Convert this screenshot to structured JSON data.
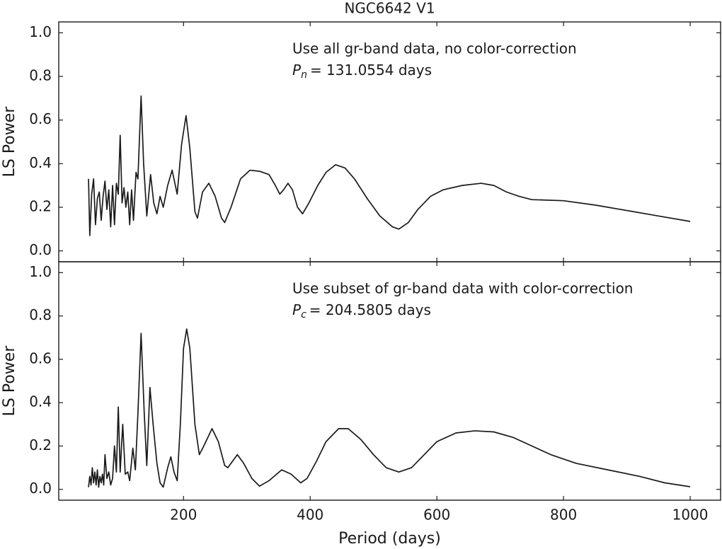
{
  "chart_data": [
    {
      "type": "line",
      "title": "NGC6642 V1",
      "ylabel": "LS Power",
      "color": "#1a1a1a",
      "annotation": "Use all gr-band data, no color-correction",
      "period_label": {
        "symbol": "P",
        "subscript": "n",
        "text": "= 131.0554 days"
      },
      "xlim": [
        3,
        1048
      ],
      "ylim": [
        -0.05,
        1.05
      ],
      "yticks": [
        {
          "value": 0,
          "label": "0.0"
        },
        0.2,
        0.4,
        0.6,
        0.8,
        {
          "value": 1,
          "label": "1.0"
        }
      ],
      "x": [
        50,
        52,
        55,
        58,
        61,
        64,
        67,
        70,
        73,
        76,
        79,
        82,
        85,
        88,
        91,
        94,
        97,
        100,
        103,
        106,
        109,
        112,
        115,
        118,
        121,
        125,
        128,
        133,
        137,
        142,
        148,
        153,
        158,
        163,
        168,
        175,
        182,
        190,
        197,
        204,
        210,
        218,
        222,
        230,
        240,
        250,
        260,
        265,
        275,
        290,
        305,
        320,
        335,
        345,
        352,
        358,
        365,
        372,
        380,
        388,
        398,
        412,
        425,
        440,
        455,
        470,
        490,
        510,
        530,
        540,
        555,
        570,
        590,
        610,
        640,
        670,
        690,
        710,
        730,
        750,
        800,
        850,
        900,
        950,
        1000
      ],
      "values": [
        0.33,
        0.07,
        0.26,
        0.33,
        0.12,
        0.24,
        0.27,
        0.14,
        0.25,
        0.32,
        0.19,
        0.28,
        0.11,
        0.3,
        0.12,
        0.31,
        0.26,
        0.53,
        0.22,
        0.29,
        0.2,
        0.27,
        0.12,
        0.28,
        0.14,
        0.36,
        0.33,
        0.71,
        0.4,
        0.16,
        0.35,
        0.22,
        0.17,
        0.25,
        0.2,
        0.3,
        0.37,
        0.26,
        0.49,
        0.62,
        0.47,
        0.18,
        0.15,
        0.27,
        0.31,
        0.25,
        0.15,
        0.13,
        0.2,
        0.33,
        0.37,
        0.365,
        0.35,
        0.3,
        0.26,
        0.28,
        0.31,
        0.28,
        0.2,
        0.17,
        0.22,
        0.3,
        0.36,
        0.395,
        0.38,
        0.33,
        0.24,
        0.16,
        0.11,
        0.1,
        0.13,
        0.19,
        0.25,
        0.28,
        0.3,
        0.31,
        0.3,
        0.27,
        0.25,
        0.235,
        0.23,
        0.21,
        0.185,
        0.16,
        0.135
      ]
    },
    {
      "type": "line",
      "ylabel": "LS Power",
      "xlabel": "Period (days)",
      "color": "#1a1a1a",
      "annotation": "Use subset of gr-band data with color-correction",
      "period_label": {
        "symbol": "P",
        "subscript": "c",
        "text": "= 204.5805 days"
      },
      "xlim": [
        3,
        1048
      ],
      "ylim": [
        -0.05,
        1.05
      ],
      "xticks": [
        200,
        400,
        600,
        800,
        1000
      ],
      "yticks": [
        {
          "value": 0,
          "label": "0.0"
        },
        0.2,
        0.4,
        0.6,
        0.8,
        {
          "value": 1,
          "label": "1.0"
        }
      ],
      "x": [
        50,
        52,
        54,
        56,
        58,
        60,
        62,
        64,
        66,
        68,
        70,
        72,
        74,
        76,
        79,
        82,
        85,
        88,
        91,
        94,
        97,
        100,
        104,
        108,
        112,
        115,
        120,
        124,
        128,
        133,
        138,
        142,
        147,
        152,
        158,
        163,
        168,
        175,
        180,
        185,
        190,
        195,
        200,
        205,
        210,
        218,
        225,
        232,
        245,
        255,
        265,
        270,
        285,
        295,
        308,
        320,
        335,
        355,
        370,
        385,
        395,
        410,
        425,
        445,
        460,
        480,
        500,
        520,
        540,
        560,
        580,
        600,
        630,
        660,
        690,
        720,
        750,
        780,
        820,
        870,
        920,
        960,
        1000
      ],
      "values": [
        0.01,
        0.06,
        0.02,
        0.1,
        0.03,
        0.08,
        0.02,
        0.09,
        0.01,
        0.06,
        0.03,
        0.07,
        0.02,
        0.16,
        0.05,
        0.08,
        0.02,
        0.05,
        0.2,
        0.08,
        0.38,
        0.08,
        0.3,
        0.07,
        0.08,
        0.04,
        0.19,
        0.09,
        0.35,
        0.72,
        0.35,
        0.11,
        0.47,
        0.3,
        0.12,
        0.03,
        0.01,
        0.1,
        0.15,
        0.08,
        0.04,
        0.3,
        0.65,
        0.74,
        0.65,
        0.3,
        0.16,
        0.2,
        0.28,
        0.22,
        0.11,
        0.1,
        0.16,
        0.12,
        0.05,
        0.015,
        0.04,
        0.09,
        0.07,
        0.03,
        0.05,
        0.13,
        0.22,
        0.28,
        0.28,
        0.23,
        0.16,
        0.1,
        0.08,
        0.1,
        0.16,
        0.22,
        0.26,
        0.27,
        0.265,
        0.24,
        0.2,
        0.16,
        0.12,
        0.09,
        0.06,
        0.03,
        0.012
      ]
    }
  ]
}
